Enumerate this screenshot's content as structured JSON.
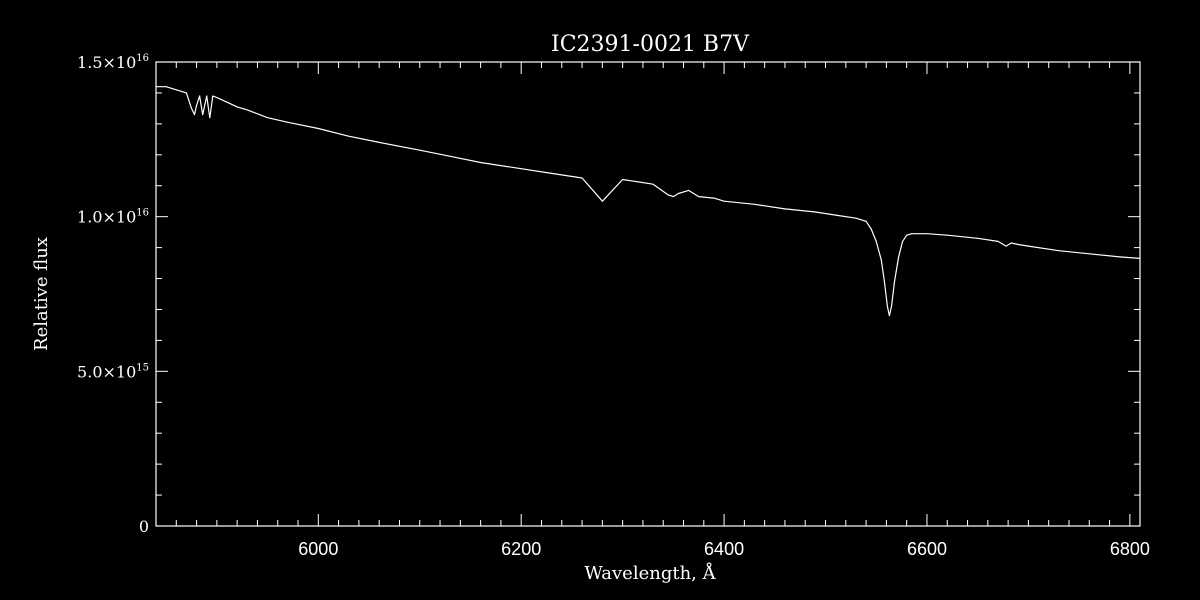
{
  "chart_data": {
    "type": "line",
    "title": "IC2391-0021   B7V",
    "xlabel": "Wavelength, Å",
    "ylabel": "Relative flux",
    "xlim": [
      5840,
      6810
    ],
    "ylim": [
      0,
      1.5e+16
    ],
    "x_ticks": [
      {
        "value": 6000,
        "label": "6000"
      },
      {
        "value": 6200,
        "label": "6200"
      },
      {
        "value": 6400,
        "label": "6400"
      },
      {
        "value": 6600,
        "label": "6600"
      },
      {
        "value": 6800,
        "label": "6800"
      }
    ],
    "y_ticks": [
      {
        "value": 0,
        "mantissa": "0",
        "exponent": ""
      },
      {
        "value": 5000000000000000.0,
        "mantissa": "5.0×10",
        "exponent": "15"
      },
      {
        "value": 1e+16,
        "mantissa": "1.0×10",
        "exponent": "16"
      },
      {
        "value": 1.5e+16,
        "mantissa": "1.5×10",
        "exponent": "16"
      }
    ],
    "grid": false,
    "background_color": "#000000",
    "line_color": "#ffffff",
    "series": [
      {
        "x": [
          5840,
          5850,
          5860,
          5870,
          5875,
          5878,
          5880,
          5883,
          5886,
          5890,
          5893,
          5896,
          5900,
          5910,
          5920,
          5930,
          5950,
          5970,
          6000,
          6030,
          6060,
          6100,
          6130,
          6160,
          6200,
          6230,
          6260,
          6280,
          6300,
          6330,
          6345,
          6350,
          6355,
          6365,
          6375,
          6390,
          6400,
          6430,
          6460,
          6490,
          6510,
          6530,
          6540,
          6545,
          6550,
          6555,
          6558,
          6561,
          6563,
          6565,
          6568,
          6572,
          6576,
          6580,
          6585,
          6592,
          6600,
          6620,
          6650,
          6670,
          6678,
          6683,
          6690,
          6700,
          6730,
          6760,
          6790,
          6810
        ],
        "y": [
          1.42e+16,
          1.42e+16,
          1.41e+16,
          1.4e+16,
          1.35e+16,
          1.33e+16,
          1.36e+16,
          1.39e+16,
          1.33e+16,
          1.39e+16,
          1.32e+16,
          1.39e+16,
          1.385e+16,
          1.37e+16,
          1.355e+16,
          1.345e+16,
          1.32e+16,
          1.305e+16,
          1.285e+16,
          1.26e+16,
          1.24e+16,
          1.215e+16,
          1.195e+16,
          1.175e+16,
          1.155e+16,
          1.14e+16,
          1.125e+16,
          1.05e+16,
          1.12e+16,
          1.105e+16,
          1.07e+16,
          1.065e+16,
          1.075e+16,
          1.085e+16,
          1.065e+16,
          1.06e+16,
          1.05e+16,
          1.04e+16,
          1.025e+16,
          1.015e+16,
          1.005e+16,
          9950000000000000.0,
          9850000000000000.0,
          9600000000000000.0,
          9200000000000000.0,
          8600000000000000.0,
          7900000000000000.0,
          7100000000000000.0,
          6800000000000000.0,
          7100000000000000.0,
          7900000000000000.0,
          8700000000000000.0,
          9200000000000000.0,
          9400000000000000.0,
          9450000000000000.0,
          9450000000000000.0,
          9450000000000000.0,
          9400000000000000.0,
          9300000000000000.0,
          9200000000000000.0,
          9050000000000000.0,
          9150000000000000.0,
          9100000000000000.0,
          9050000000000000.0,
          8900000000000000.0,
          8800000000000000.0,
          8700000000000000.0,
          8650000000000000.0
        ]
      }
    ]
  }
}
